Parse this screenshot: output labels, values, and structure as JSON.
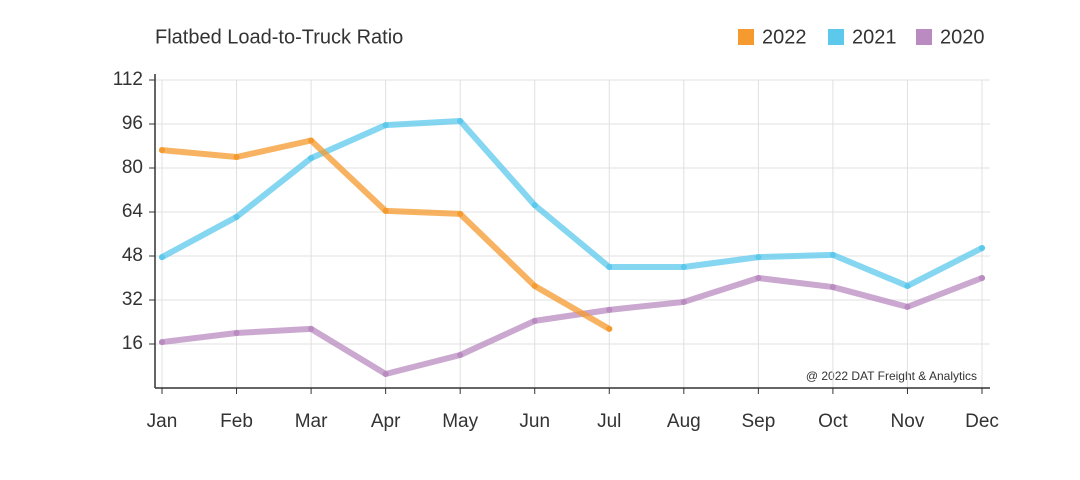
{
  "chart_data": {
    "type": "line",
    "title": "Flatbed Load-to-Truck Ratio",
    "categories": [
      "Jan",
      "Feb",
      "Mar",
      "Apr",
      "May",
      "Jun",
      "Jul",
      "Aug",
      "Sep",
      "Oct",
      "Nov",
      "Dec"
    ],
    "series": [
      {
        "name": "2022",
        "color": "#f59a2e",
        "values": [
          86.5,
          84,
          90,
          64.4,
          63.3,
          37.1,
          21.5,
          null,
          null,
          null,
          null,
          null
        ]
      },
      {
        "name": "2021",
        "color": "#5bc8ec",
        "values": [
          47.6,
          62.2,
          83.6,
          95.6,
          97.1,
          66.5,
          44,
          44,
          47.6,
          48.4,
          37.1,
          50.9
        ]
      },
      {
        "name": "2020",
        "color": "#b98bc0",
        "values": [
          16.7,
          20,
          21.5,
          5.1,
          12,
          24.4,
          28.4,
          31.3,
          40,
          36.7,
          29.5,
          40
        ]
      }
    ],
    "ylim": [
      0,
      112
    ],
    "yticks": [
      16,
      32,
      48,
      64,
      80,
      96,
      112
    ],
    "grid": true,
    "legend": "top-right",
    "annotation": "@ 2022 DAT Freight & Analytics"
  }
}
